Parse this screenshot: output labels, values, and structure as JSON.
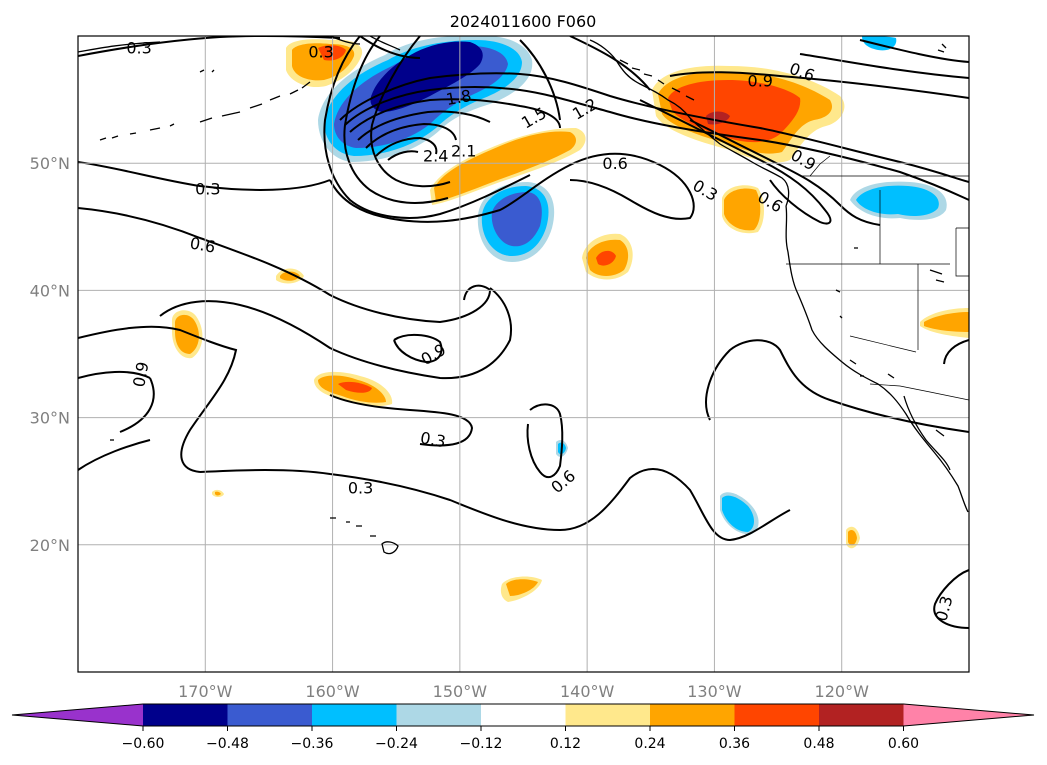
{
  "title": "2024011600 F060",
  "map": {
    "lon_range": [
      -180,
      -110
    ],
    "lat_range": [
      10,
      60
    ],
    "lon_ticks": [
      {
        "value": -170,
        "label": "170°W"
      },
      {
        "value": -160,
        "label": "160°W"
      },
      {
        "value": -150,
        "label": "150°W"
      },
      {
        "value": -140,
        "label": "140°W"
      },
      {
        "value": -130,
        "label": "130°W"
      },
      {
        "value": -120,
        "label": "120°W"
      }
    ],
    "lat_ticks": [
      {
        "value": 20,
        "label": "20°N"
      },
      {
        "value": 30,
        "label": "30°N"
      },
      {
        "value": 40,
        "label": "40°N"
      },
      {
        "value": 50,
        "label": "50°N"
      }
    ],
    "grid": true
  },
  "colorbar": {
    "colors": [
      "#9932cc",
      "#00008b",
      "#3a5bd0",
      "#00bfff",
      "#add8e6",
      "#ffffff",
      "#ffe88c",
      "#ffa500",
      "#ff4500",
      "#b22222",
      "#ff82a8"
    ],
    "tick_labels": [
      "−0.60",
      "−0.48",
      "−0.36",
      "−0.24",
      "−0.12",
      "0.12",
      "0.24",
      "0.36",
      "0.48",
      "0.60"
    ]
  },
  "contour_labels": [
    {
      "text": "0.3",
      "lon": -175.2,
      "lat": 59.1,
      "rot": 0
    },
    {
      "text": "0.3",
      "lon": -160.9,
      "lat": 58.8,
      "rot": 0
    },
    {
      "text": "1.8",
      "lon": -150.1,
      "lat": 55.2,
      "rot": -10
    },
    {
      "text": "1.5",
      "lon": -144.2,
      "lat": 53.6,
      "rot": -30
    },
    {
      "text": "1.2",
      "lon": -140.2,
      "lat": 54.3,
      "rot": -30
    },
    {
      "text": "2.4",
      "lon": -151.9,
      "lat": 50.6,
      "rot": 0
    },
    {
      "text": "2.1",
      "lon": -149.7,
      "lat": 51.0,
      "rot": 0
    },
    {
      "text": "0.6",
      "lon": -137.8,
      "lat": 50.0,
      "rot": 0
    },
    {
      "text": "0.9",
      "lon": -126.4,
      "lat": 56.5,
      "rot": 0
    },
    {
      "text": "0.6",
      "lon": -123.1,
      "lat": 57.2,
      "rot": 20
    },
    {
      "text": "0.9",
      "lon": -123.0,
      "lat": 50.3,
      "rot": 30
    },
    {
      "text": "0.3",
      "lon": -130.7,
      "lat": 47.9,
      "rot": 30
    },
    {
      "text": "0.6",
      "lon": -125.6,
      "lat": 47.0,
      "rot": 30
    },
    {
      "text": "0.3",
      "lon": -169.8,
      "lat": 48.0,
      "rot": 0
    },
    {
      "text": "0.6",
      "lon": -170.2,
      "lat": 43.6,
      "rot": 10
    },
    {
      "text": "0.9",
      "lon": -152.1,
      "lat": 35.0,
      "rot": -30
    },
    {
      "text": "0.9",
      "lon": -175.1,
      "lat": 33.4,
      "rot": -80
    },
    {
      "text": "0.3",
      "lon": -152.1,
      "lat": 28.3,
      "rot": 10
    },
    {
      "text": "0.3",
      "lon": -157.8,
      "lat": 24.5,
      "rot": 0
    },
    {
      "text": "0.6",
      "lon": -141.9,
      "lat": 25.0,
      "rot": -40
    },
    {
      "text": "0.3",
      "lon": -112.0,
      "lat": 15.0,
      "rot": -75
    }
  ]
}
